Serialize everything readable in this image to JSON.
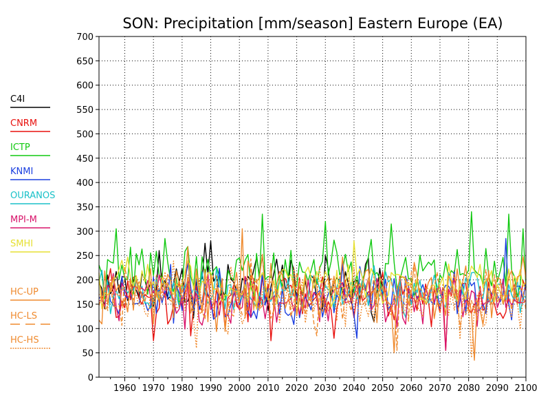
{
  "chart_data": {
    "type": "line",
    "title": "SON: Precipitation [mm/season] Eastern Europe (EA)",
    "xlabel": "",
    "ylabel": "",
    "xlim": [
      1951,
      2100
    ],
    "ylim": [
      0,
      700
    ],
    "x_ticks": [
      1960,
      1970,
      1980,
      1990,
      2000,
      2010,
      2020,
      2030,
      2040,
      2050,
      2060,
      2070,
      2080,
      2090,
      2100
    ],
    "y_ticks": [
      0,
      50,
      100,
      150,
      200,
      250,
      300,
      350,
      400,
      450,
      500,
      550,
      600,
      650,
      700
    ],
    "grid": true,
    "legend_position": "left",
    "series": [
      {
        "name": "C4I",
        "color": "#000000",
        "dash": "solid",
        "x_range": [
          1951,
          2050
        ],
        "baseline": 185,
        "amplitude": 40,
        "peaks": [
          [
            1972,
            260
          ],
          [
            1988,
            275
          ],
          [
            1990,
            280
          ],
          [
            2008,
            250
          ],
          [
            2018,
            240
          ],
          [
            2030,
            250
          ],
          [
            2045,
            245
          ]
        ]
      },
      {
        "name": "CNRM",
        "color": "#e8100d",
        "dash": "solid",
        "x_range": [
          1951,
          2100
        ],
        "baseline": 165,
        "amplitude": 40,
        "peaks": [
          [
            1970,
            75
          ],
          [
            1983,
            85
          ],
          [
            2011,
            75
          ],
          [
            2033,
            80
          ],
          [
            2072,
            55
          ]
        ]
      },
      {
        "name": "ICTP",
        "color": "#10c810",
        "dash": "solid",
        "x_range": [
          1951,
          2100
        ],
        "baseline": 215,
        "amplitude": 40,
        "peaks": [
          [
            1957,
            305
          ],
          [
            1974,
            285
          ],
          [
            2008,
            335
          ],
          [
            2030,
            320
          ],
          [
            2053,
            315
          ],
          [
            2081,
            340
          ],
          [
            2094,
            335
          ],
          [
            2099,
            305
          ]
        ]
      },
      {
        "name": "KNMI",
        "color": "#1a3ee0",
        "dash": "solid",
        "x_range": [
          1951,
          2100
        ],
        "baseline": 170,
        "amplitude": 38,
        "peaks": [
          [
            2041,
            80
          ],
          [
            2093,
            285
          ]
        ]
      },
      {
        "name": "OURANOS",
        "color": "#19c1c8",
        "dash": "solid",
        "x_range": [
          1951,
          2100
        ],
        "baseline": 175,
        "amplitude": 35,
        "peaks": []
      },
      {
        "name": "MPI-M",
        "color": "#d8136a",
        "dash": "solid",
        "x_range": [
          1951,
          2100
        ],
        "baseline": 160,
        "amplitude": 40,
        "peaks": [
          [
            2072,
            55
          ]
        ]
      },
      {
        "name": "SMHI",
        "color": "#e6e032",
        "dash": "solid",
        "x_range": [
          1951,
          2100
        ],
        "baseline": 190,
        "amplitude": 35,
        "peaks": [
          [
            2040,
            280
          ]
        ]
      },
      {
        "name": "HC-UP",
        "color": "#ef8a2e",
        "dash": "solid",
        "x_range": [
          1951,
          2100
        ],
        "baseline": 180,
        "amplitude": 50,
        "peaks": [
          [
            2001,
            305
          ],
          [
            2054,
            50
          ],
          [
            2082,
            35
          ]
        ]
      },
      {
        "name": "HC-LS",
        "color": "#ef8a2e",
        "dash": "dashed",
        "x_range": [
          1951,
          2100
        ],
        "baseline": 170,
        "amplitude": 45,
        "peaks": [
          [
            2055,
            55
          ]
        ]
      },
      {
        "name": "HC-HS",
        "color": "#ef8a2e",
        "dash": "dotted",
        "x_range": [
          1951,
          2100
        ],
        "baseline": 160,
        "amplitude": 45,
        "peaks": [
          [
            1985,
            60
          ],
          [
            2081,
            40
          ]
        ]
      }
    ]
  }
}
